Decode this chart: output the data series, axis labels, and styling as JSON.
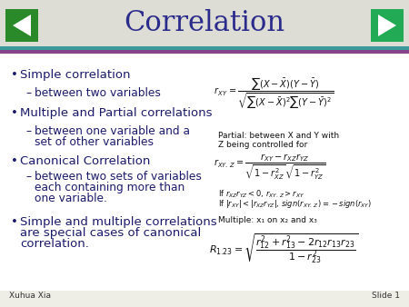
{
  "title": "Correlation",
  "title_color": "#2B2B8C",
  "title_fontsize": 22,
  "bg_color": "#EEEEE6",
  "header_bg_color": "#DDDDD5",
  "bar_teal": "#3A9999",
  "bar_purple": "#884488",
  "left_arrow_color": "#2A8A2A",
  "right_arrow_color": "#22AA55",
  "bullet_color": "#2B2B8C",
  "text_color": "#1A1A6A",
  "formula_color": "#111111",
  "footer_left": "Xuhua Xia",
  "footer_right": "Slide 1",
  "partial_label_line1": "Partial: between X and Y with",
  "partial_label_line2": "Z being controlled for",
  "multiple_label": "Multiple: x₁ on x₂ and x₃"
}
